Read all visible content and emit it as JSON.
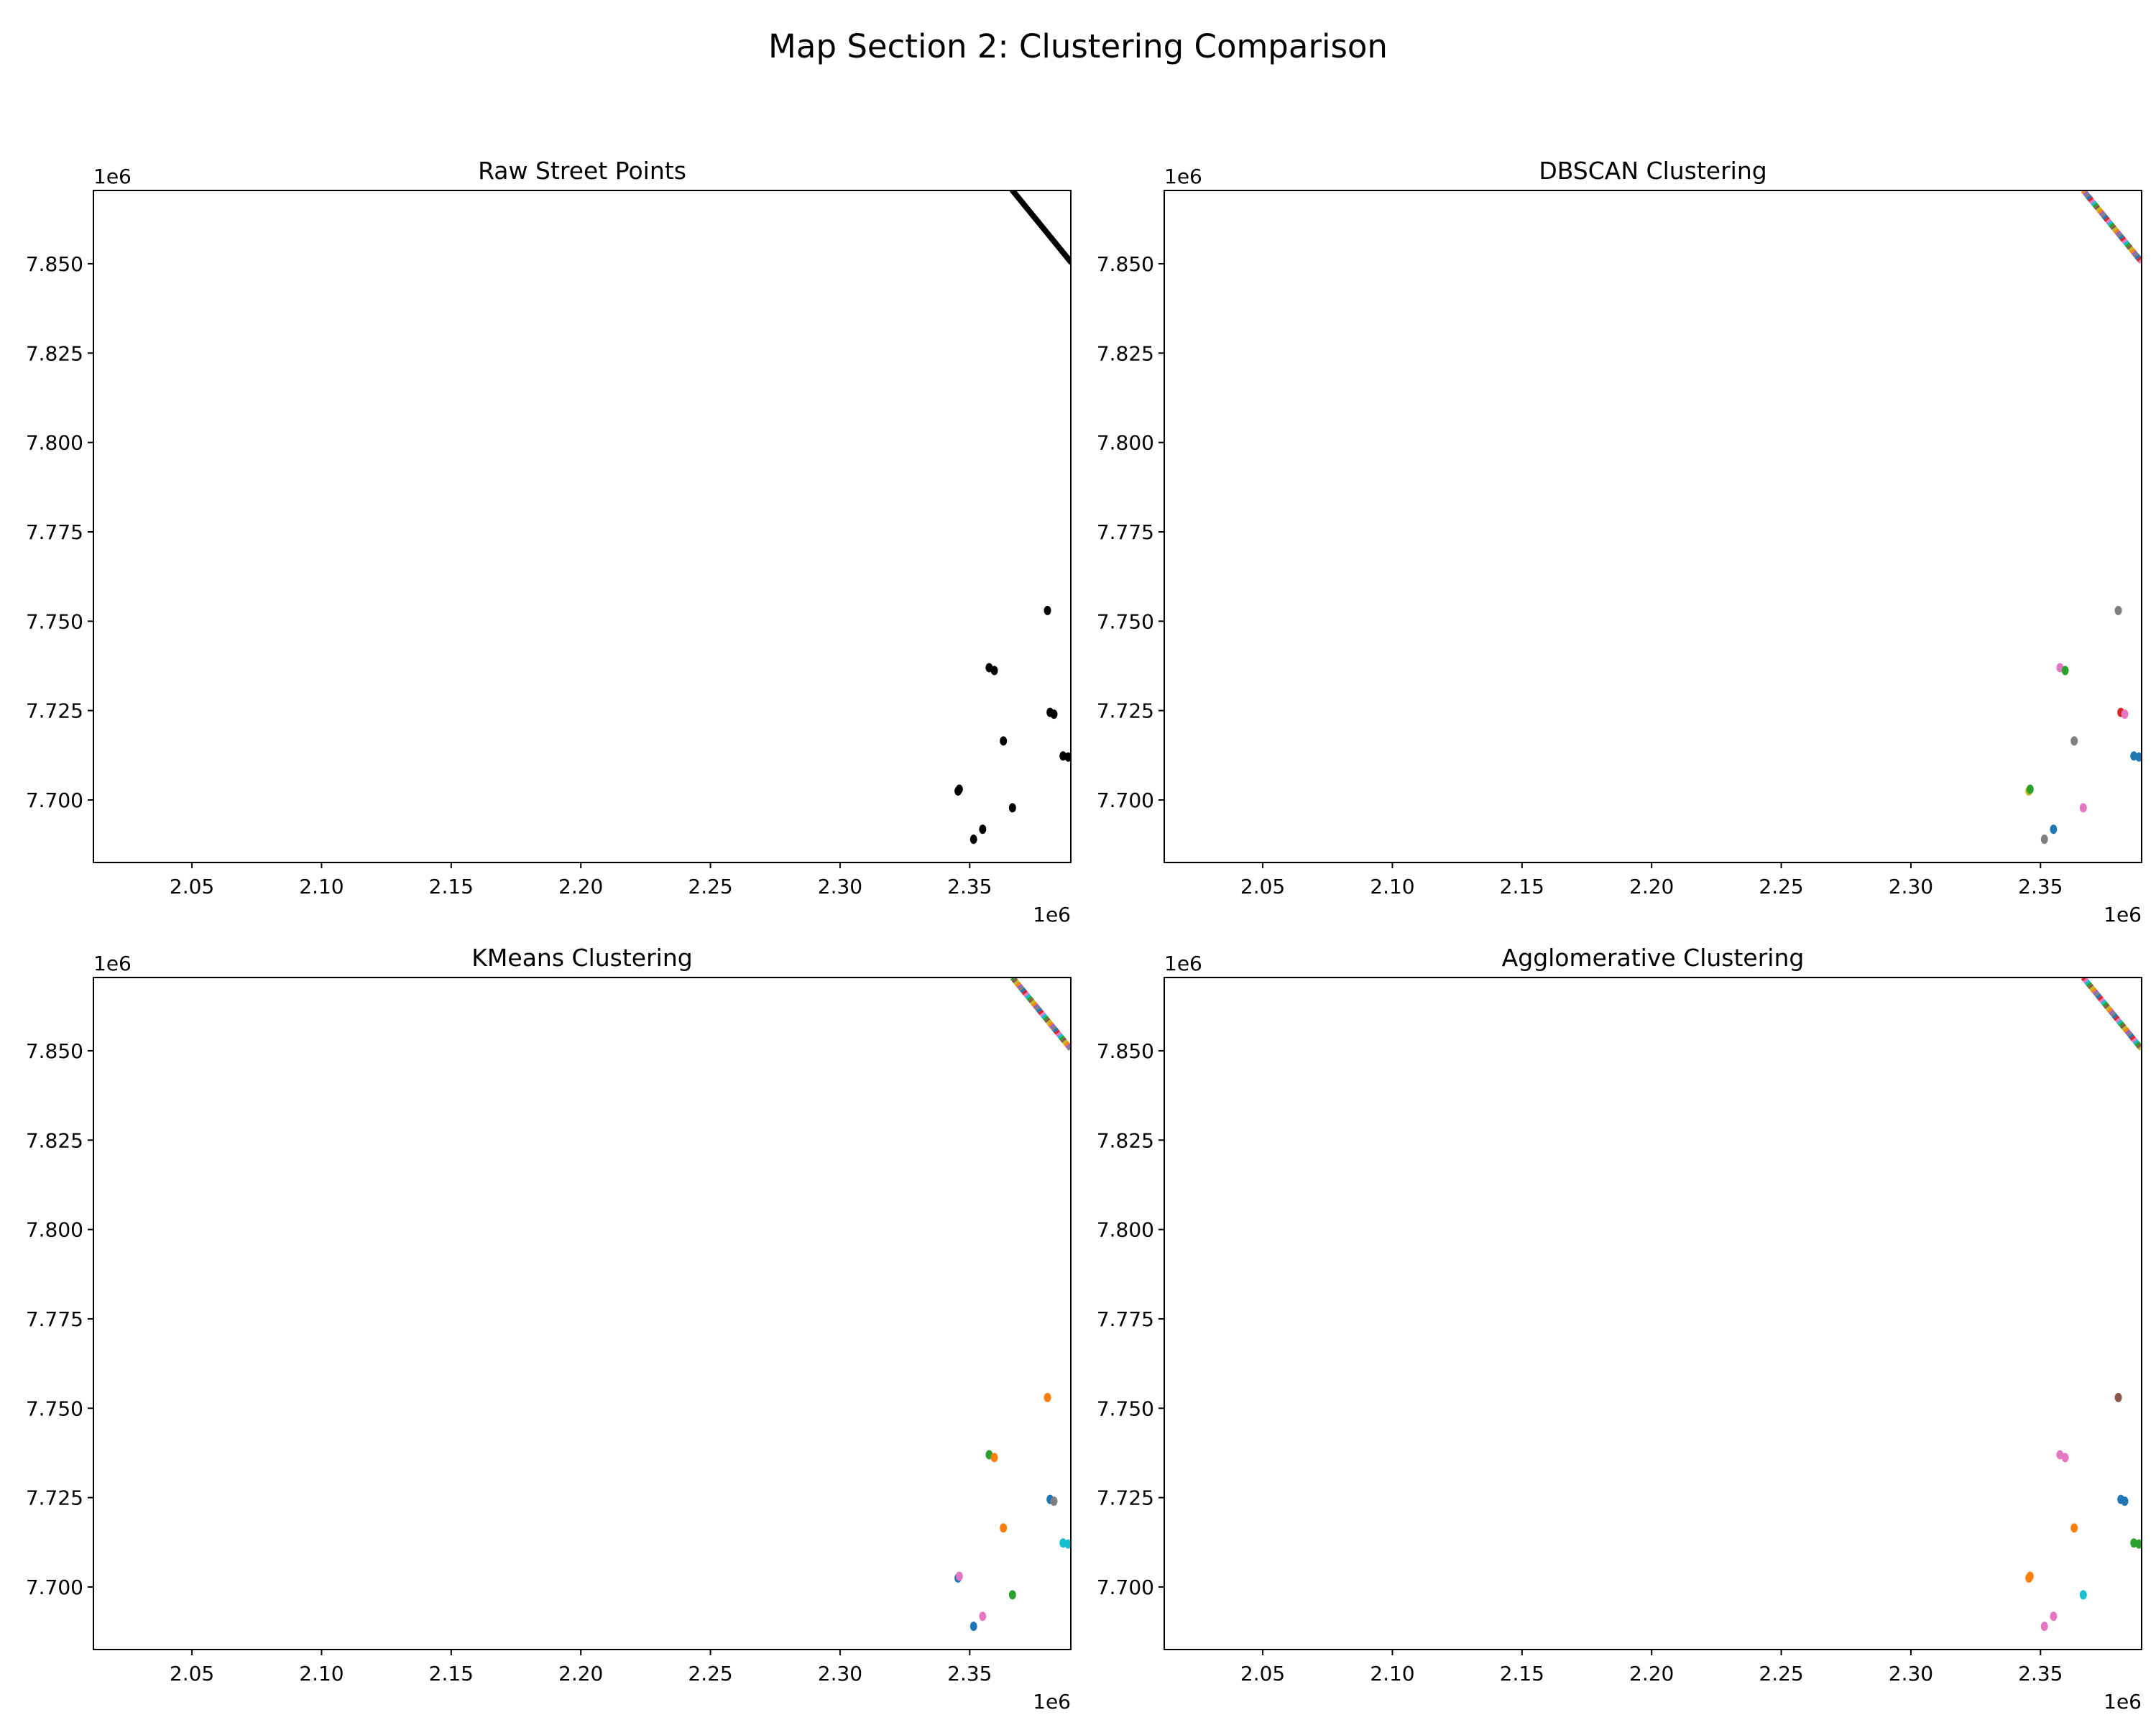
{
  "figure": {
    "title": "Map Section 2: Clustering Comparison"
  },
  "chart_data": [
    {
      "type": "scatter",
      "title": "Raw Street Points",
      "xlabel": "",
      "ylabel": "",
      "x_offset_label": "1e6",
      "y_offset_label": "1e6",
      "xlim": [
        2.012,
        2.389
      ],
      "ylim": [
        7.6825,
        7.8705
      ],
      "xticks": [
        "2.05",
        "2.10",
        "2.15",
        "2.20",
        "2.25",
        "2.30",
        "2.35"
      ],
      "yticks": [
        "7.700",
        "7.725",
        "7.750",
        "7.775",
        "7.800",
        "7.825",
        "7.850"
      ],
      "grid": false,
      "color_mode": "black",
      "line_segment": {
        "from": [
          2.3665,
          7.8705
        ],
        "to": [
          2.389,
          7.8505
        ]
      },
      "points": [
        [
          2.3455,
          7.7025
        ],
        [
          2.346,
          7.703
        ],
        [
          2.3515,
          7.689
        ],
        [
          2.355,
          7.6918
        ],
        [
          2.3575,
          7.737
        ],
        [
          2.3595,
          7.7362
        ],
        [
          2.363,
          7.7165
        ],
        [
          2.3665,
          7.6978
        ],
        [
          2.38,
          7.753
        ],
        [
          2.381,
          7.7245
        ],
        [
          2.3825,
          7.724
        ],
        [
          2.386,
          7.7123
        ],
        [
          2.388,
          7.712
        ]
      ],
      "point_colors": []
    },
    {
      "type": "scatter",
      "title": "DBSCAN Clustering",
      "xlabel": "",
      "ylabel": "",
      "x_offset_label": "1e6",
      "y_offset_label": "1e6",
      "xlim": [
        2.012,
        2.389
      ],
      "ylim": [
        7.6825,
        7.8705
      ],
      "xticks": [
        "2.05",
        "2.10",
        "2.15",
        "2.20",
        "2.25",
        "2.30",
        "2.35"
      ],
      "yticks": [
        "7.700",
        "7.725",
        "7.750",
        "7.775",
        "7.800",
        "7.825",
        "7.850"
      ],
      "grid": false,
      "color_mode": "multi",
      "line_segment": {
        "from": [
          2.3665,
          7.8705
        ],
        "to": [
          2.389,
          7.8505
        ]
      },
      "points": [
        [
          2.3455,
          7.7025
        ],
        [
          2.346,
          7.703
        ],
        [
          2.3515,
          7.689
        ],
        [
          2.355,
          7.6918
        ],
        [
          2.3575,
          7.737
        ],
        [
          2.3595,
          7.7362
        ],
        [
          2.363,
          7.7165
        ],
        [
          2.3665,
          7.6978
        ],
        [
          2.38,
          7.753
        ],
        [
          2.381,
          7.7245
        ],
        [
          2.3825,
          7.724
        ],
        [
          2.386,
          7.7123
        ],
        [
          2.388,
          7.712
        ]
      ],
      "point_colors": [
        "#bcbd22",
        "#2ca02c",
        "#7f7f7f",
        "#1f77b4",
        "#e377c2",
        "#2ca02c",
        "#7f7f7f",
        "#e377c2",
        "#7f7f7f",
        "#d62728",
        "#e377c2",
        "#1f77b4",
        "#1f77b4"
      ]
    },
    {
      "type": "scatter",
      "title": "KMeans Clustering",
      "xlabel": "",
      "ylabel": "",
      "x_offset_label": "1e6",
      "y_offset_label": "1e6",
      "xlim": [
        2.012,
        2.389
      ],
      "ylim": [
        7.6825,
        7.8705
      ],
      "xticks": [
        "2.05",
        "2.10",
        "2.15",
        "2.20",
        "2.25",
        "2.30",
        "2.35"
      ],
      "yticks": [
        "7.700",
        "7.725",
        "7.750",
        "7.775",
        "7.800",
        "7.825",
        "7.850"
      ],
      "grid": false,
      "color_mode": "multi",
      "line_segment": {
        "from": [
          2.3665,
          7.8705
        ],
        "to": [
          2.389,
          7.8505
        ]
      },
      "points": [
        [
          2.3455,
          7.7025
        ],
        [
          2.346,
          7.703
        ],
        [
          2.3515,
          7.689
        ],
        [
          2.355,
          7.6918
        ],
        [
          2.3575,
          7.737
        ],
        [
          2.3595,
          7.7362
        ],
        [
          2.363,
          7.7165
        ],
        [
          2.3665,
          7.6978
        ],
        [
          2.38,
          7.753
        ],
        [
          2.381,
          7.7245
        ],
        [
          2.3825,
          7.724
        ],
        [
          2.386,
          7.7123
        ],
        [
          2.388,
          7.712
        ]
      ],
      "point_colors": [
        "#1f77b4",
        "#e377c2",
        "#1f77b4",
        "#e377c2",
        "#2ca02c",
        "#ff7f0e",
        "#ff7f0e",
        "#2ca02c",
        "#ff7f0e",
        "#1f77b4",
        "#7f7f7f",
        "#17becf",
        "#17becf"
      ]
    },
    {
      "type": "scatter",
      "title": "Agglomerative Clustering",
      "xlabel": "",
      "ylabel": "",
      "x_offset_label": "1e6",
      "y_offset_label": "1e6",
      "xlim": [
        2.012,
        2.389
      ],
      "ylim": [
        7.6825,
        7.8705
      ],
      "xticks": [
        "2.05",
        "2.10",
        "2.15",
        "2.20",
        "2.25",
        "2.30",
        "2.35"
      ],
      "yticks": [
        "7.700",
        "7.725",
        "7.750",
        "7.775",
        "7.800",
        "7.825",
        "7.850"
      ],
      "grid": false,
      "color_mode": "multi",
      "line_segment": {
        "from": [
          2.3665,
          7.8705
        ],
        "to": [
          2.389,
          7.8505
        ]
      },
      "points": [
        [
          2.3455,
          7.7025
        ],
        [
          2.346,
          7.703
        ],
        [
          2.3515,
          7.689
        ],
        [
          2.355,
          7.6918
        ],
        [
          2.3575,
          7.737
        ],
        [
          2.3595,
          7.7362
        ],
        [
          2.363,
          7.7165
        ],
        [
          2.3665,
          7.6978
        ],
        [
          2.38,
          7.753
        ],
        [
          2.381,
          7.7245
        ],
        [
          2.3825,
          7.724
        ],
        [
          2.386,
          7.7123
        ],
        [
          2.388,
          7.712
        ]
      ],
      "point_colors": [
        "#ff7f0e",
        "#ff7f0e",
        "#e377c2",
        "#e377c2",
        "#e377c2",
        "#e377c2",
        "#ff7f0e",
        "#17becf",
        "#8c564b",
        "#1f77b4",
        "#1f77b4",
        "#2ca02c",
        "#2ca02c"
      ]
    }
  ],
  "palette": [
    "#1f77b4",
    "#ff7f0e",
    "#2ca02c",
    "#d62728",
    "#9467bd",
    "#8c564b",
    "#e377c2",
    "#7f7f7f",
    "#bcbd22",
    "#17becf"
  ]
}
